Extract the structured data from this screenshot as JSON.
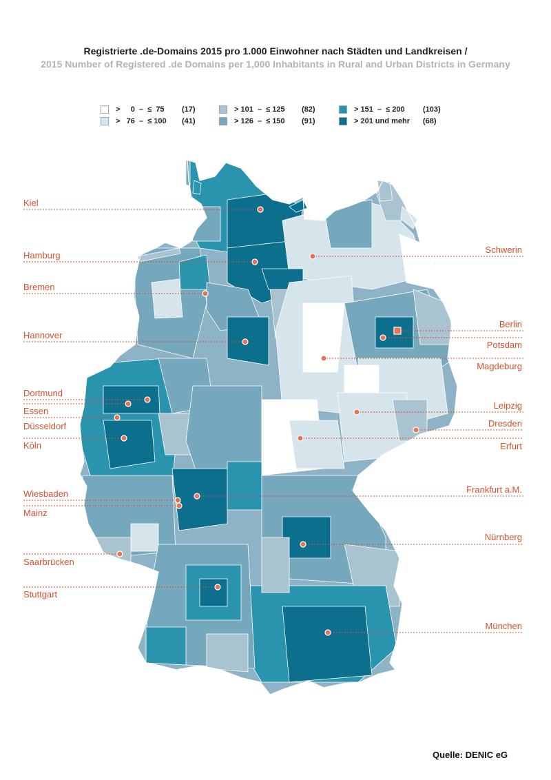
{
  "title": {
    "de": "Registrierte .de-Domains 2015 pro 1.000 Einwohner nach Städten und Landkreisen /",
    "en": "2015 Number of Registered .de Domains per 1,000 Inhabitants in Rural and Urban Districts in Germany"
  },
  "legend": {
    "items": [
      {
        "label": ">     0  –  ≤  75",
        "count": "(17)",
        "color": "#ffffff"
      },
      {
        "label": ">   76  –  ≤ 100",
        "count": "(41)",
        "color": "#d6e4ec"
      },
      {
        "label": "> 101  –  ≤ 125",
        "count": "(82)",
        "color": "#a9c3d1"
      },
      {
        "label": "> 126  –  ≤ 150",
        "count": "(91)",
        "color": "#76a8bd"
      },
      {
        "label": "> 151  –  ≤ 200",
        "count": "(103)",
        "color": "#2a93ad"
      },
      {
        "label": "> 201 und mehr",
        "count": "(68)",
        "color": "#0b6f8d"
      }
    ]
  },
  "cities": {
    "kiel": "Kiel",
    "hamburg": "Hamburg",
    "bremen": "Bremen",
    "hannover": "Hannover",
    "dortmund": "Dortmund",
    "essen": "Essen",
    "duesseldorf": "Düsseldorf",
    "koeln": "Köln",
    "wiesbaden": "Wiesbaden",
    "mainz": "Mainz",
    "saarbruecken": "Saarbrücken",
    "stuttgart": "Stuttgart",
    "schwerin": "Schwerin",
    "berlin": "Berlin",
    "potsdam": "Potsdam",
    "magdeburg": "Magdeburg",
    "leipzig": "Leipzig",
    "dresden": "Dresden",
    "erfurt": "Erfurt",
    "frankfurt": "Frankfurt a.M.",
    "nuernberg": "Nürnberg",
    "muenchen": "München"
  },
  "colors": {
    "label": "#d9512c",
    "marker": "#e8734f",
    "border": "#ffffff"
  },
  "source": "Quelle: DENIC eG"
}
